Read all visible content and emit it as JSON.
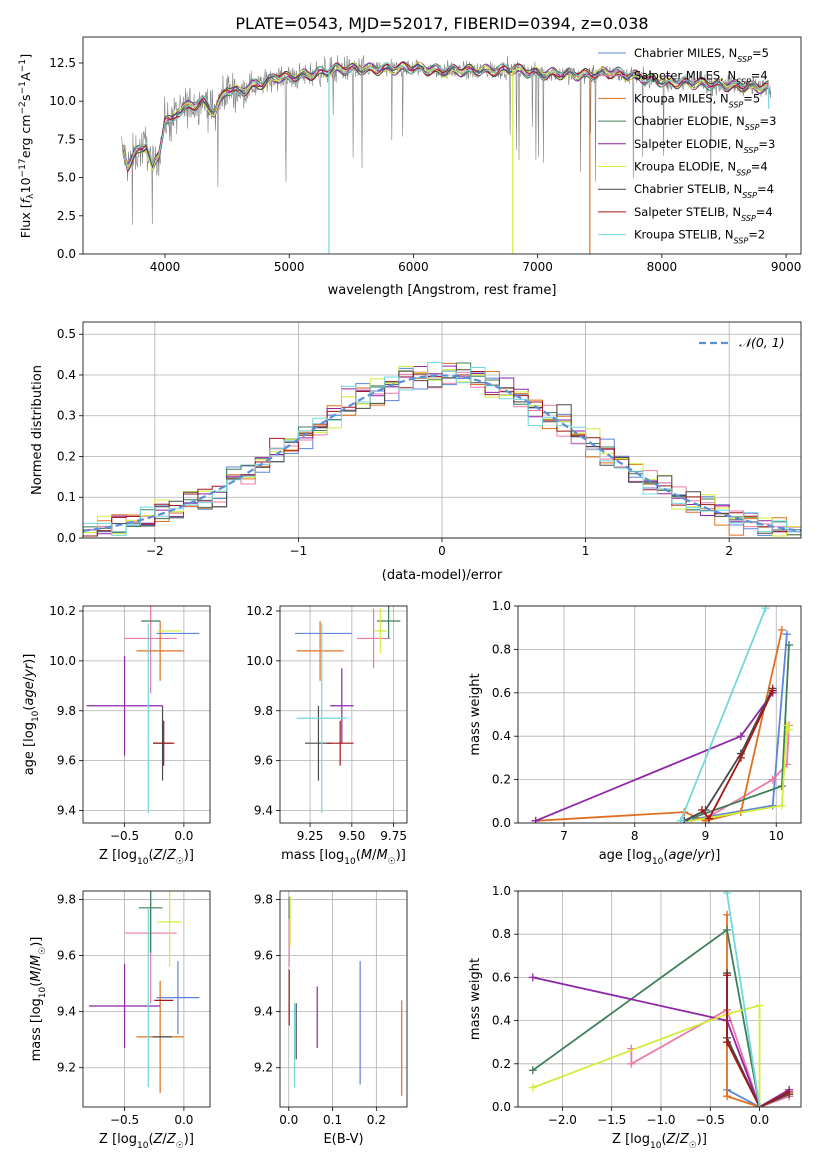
{
  "figure": {
    "title": "PLATE=0543, MJD=52017, FIBERID=0394, z=0.038"
  },
  "colors": {
    "chabrier_miles": "#5b84dc",
    "salpeter_miles": "#ec7aa8",
    "kroupa_miles": "#e07020",
    "chabrier_elodie": "#3f7f5a",
    "salpeter_elodie": "#8e26a8",
    "kroupa_elodie": "#d5eb3a",
    "chabrier_stelib": "#4a4a4a",
    "salpeter_stelib": "#a01818",
    "kroupa_stelib": "#70d8de",
    "data_spectrum": "#808080",
    "normal_curve": "#5b8fd6"
  },
  "chart_data": [
    {
      "id": "spectrum",
      "type": "line",
      "title": "PLATE=0543, MJD=52017, FIBERID=0394, z=0.038",
      "xlabel": "wavelength [Angstrom, rest frame]",
      "ylabel": "Flux [f_λ 10^-17 erg cm^-2 s^-1 A^-1]",
      "xlim": [
        3340,
        9120
      ],
      "ylim": [
        0,
        14.2
      ],
      "xticks": [
        4000,
        5000,
        6000,
        7000,
        8000,
        9000
      ],
      "yticks": [
        0.0,
        2.5,
        5.0,
        7.5,
        10.0,
        12.5
      ],
      "legend_position": "top-right",
      "grid": false,
      "series": [
        {
          "name": "Chabrier MILES, N_SSP=5",
          "key": "chabrier_miles"
        },
        {
          "name": "Salpeter MILES, N_SSP=4",
          "key": "salpeter_miles"
        },
        {
          "name": "Kroupa MILES, N_SSP=5",
          "key": "kroupa_miles"
        },
        {
          "name": "Chabrier ELODIE, N_SSP=3",
          "key": "chabrier_elodie"
        },
        {
          "name": "Salpeter ELODIE, N_SSP=3",
          "key": "salpeter_elodie"
        },
        {
          "name": "Kroupa ELODIE, N_SSP=4",
          "key": "kroupa_elodie"
        },
        {
          "name": "Chabrier STELIB, N_SSP=4",
          "key": "chabrier_stelib"
        },
        {
          "name": "Salpeter STELIB, N_SSP=4",
          "key": "salpeter_stelib"
        },
        {
          "name": "Kroupa STELIB, N_SSP=2",
          "key": "kroupa_stelib"
        }
      ],
      "continuum": {
        "x": [
          3650,
          3700,
          3750,
          3800,
          3850,
          3900,
          3950,
          4000,
          4050,
          4100,
          4200,
          4300,
          4400,
          4500,
          4600,
          4700,
          4800,
          4900,
          5000,
          5200,
          5400,
          5600,
          5800,
          6000,
          6200,
          6400,
          6600,
          6800,
          7000,
          7200,
          7400,
          7600,
          7800,
          8000,
          8200,
          8400,
          8600,
          8800
        ],
        "y": [
          7.0,
          5.8,
          6.5,
          6.8,
          7.2,
          5.5,
          6.5,
          8.8,
          8.6,
          9.3,
          9.7,
          10.0,
          9.3,
          10.8,
          10.6,
          11.0,
          11.2,
          11.6,
          11.5,
          11.8,
          12.1,
          12.1,
          12.1,
          12.2,
          12.0,
          12.0,
          12.0,
          12.1,
          11.8,
          11.8,
          11.7,
          11.9,
          11.6,
          11.3,
          11.2,
          11.1,
          11.0,
          10.9
        ]
      },
      "dropouts": [
        {
          "x": 5320,
          "y_low": 0.0,
          "model": "kroupa_stelib"
        },
        {
          "x": 6800,
          "y_low": 0.0,
          "model": "kroupa_elodie"
        },
        {
          "x": 7420,
          "y_low": 0.0,
          "model": "kroupa_miles"
        },
        {
          "x": 8860,
          "y_low": 9.5,
          "model": "kroupa_stelib"
        }
      ]
    },
    {
      "id": "residuals",
      "type": "histogram",
      "xlabel": "(data-model)/error",
      "ylabel": "Normed distribution",
      "xlim": [
        -2.5,
        2.5
      ],
      "ylim": [
        0,
        0.53
      ],
      "xticks": [
        -2,
        -1,
        0,
        1,
        2
      ],
      "yticks": [
        0.0,
        0.1,
        0.2,
        0.3,
        0.4,
        0.5
      ],
      "grid": true,
      "legend": [
        {
          "name": "𝒩(0, 1)",
          "style": "dashed"
        }
      ],
      "legend_position": "top-right",
      "bin_width": 0.1,
      "normal": {
        "mean": 0,
        "sigma": 1
      }
    },
    {
      "id": "age_vs_Z",
      "type": "errorbar",
      "xlabel": "Z [log10(Z/Z☉)]",
      "ylabel": "age  [log10(age/yr)]",
      "xlim": [
        -0.85,
        0.22
      ],
      "ylim": [
        9.35,
        10.22
      ],
      "xticks": [
        -0.5,
        0.0
      ],
      "yticks": [
        9.4,
        9.6,
        9.8,
        10.0,
        10.2
      ],
      "grid": true,
      "points": [
        {
          "key": "chabrier_miles",
          "x": -0.05,
          "y": 10.11,
          "xerr": 0.18,
          "yerr": 0.0
        },
        {
          "key": "salpeter_miles",
          "x": -0.28,
          "y": 10.09,
          "xerr": 0.22,
          "yerr": 0.22
        },
        {
          "key": "kroupa_miles",
          "x": -0.2,
          "y": 10.04,
          "xerr": 0.2,
          "yerr": 0.12
        },
        {
          "key": "chabrier_elodie",
          "x": -0.28,
          "y": 10.16,
          "xerr": 0.08,
          "yerr": 0.0
        },
        {
          "key": "salpeter_elodie",
          "x": -0.5,
          "y": 9.82,
          "xerr": 0.32,
          "yerr": 0.2
        },
        {
          "key": "kroupa_elodie",
          "x": -0.12,
          "y": 10.12,
          "xerr": 0.1,
          "yerr": 0.0
        },
        {
          "key": "chabrier_stelib",
          "x": -0.18,
          "y": 9.67,
          "xerr": 0.08,
          "yerr": 0.15
        },
        {
          "key": "salpeter_stelib",
          "x": -0.17,
          "y": 9.67,
          "xerr": 0.09,
          "yerr": 0.09
        },
        {
          "key": "kroupa_stelib",
          "x": -0.3,
          "y": 9.77,
          "xerr": 0.0,
          "yerr": 0.38
        }
      ]
    },
    {
      "id": "age_vs_mass",
      "type": "errorbar",
      "xlabel": "mass [log10(M/M☉)]",
      "ylabel": "",
      "xlim": [
        9.07,
        9.83
      ],
      "ylim": [
        9.35,
        10.22
      ],
      "xticks": [
        9.25,
        9.5,
        9.75
      ],
      "yticks": [
        9.4,
        9.6,
        9.8,
        10.0,
        10.2
      ],
      "grid": true,
      "points": [
        {
          "key": "chabrier_miles",
          "x": 9.33,
          "y": 10.11,
          "xerr": 0.17,
          "yerr": 0.0
        },
        {
          "key": "salpeter_miles",
          "x": 9.63,
          "y": 10.09,
          "xerr": 0.1,
          "yerr": 0.12
        },
        {
          "key": "kroupa_miles",
          "x": 9.31,
          "y": 10.04,
          "xerr": 0.14,
          "yerr": 0.12
        },
        {
          "key": "chabrier_elodie",
          "x": 9.72,
          "y": 10.16,
          "xerr": 0.07,
          "yerr": 0.07
        },
        {
          "key": "salpeter_elodie",
          "x": 9.44,
          "y": 9.82,
          "xerr": 0.07,
          "yerr": 0.15
        },
        {
          "key": "kroupa_elodie",
          "x": 9.67,
          "y": 10.12,
          "xerr": 0.04,
          "yerr": 0.09
        },
        {
          "key": "chabrier_stelib",
          "x": 9.3,
          "y": 9.67,
          "xerr": 0.08,
          "yerr": 0.15
        },
        {
          "key": "salpeter_stelib",
          "x": 9.43,
          "y": 9.67,
          "xerr": 0.08,
          "yerr": 0.09
        },
        {
          "key": "kroupa_stelib",
          "x": 9.32,
          "y": 9.77,
          "xerr": 0.15,
          "yerr": 0.38
        }
      ]
    },
    {
      "id": "weight_vs_age",
      "type": "line",
      "xlabel": "age  [log10(age/yr)]",
      "ylabel": "mass weight",
      "xlim": [
        6.35,
        10.35
      ],
      "ylim": [
        0,
        1
      ],
      "xticks": [
        7,
        8,
        9,
        10
      ],
      "yticks": [
        0.0,
        0.2,
        0.4,
        0.6,
        0.8,
        1.0
      ],
      "grid": true,
      "series": [
        {
          "key": "chabrier_miles",
          "x": [
            8.7,
            9.95,
            10.15
          ],
          "y": [
            0.01,
            0.08,
            0.87
          ]
        },
        {
          "key": "salpeter_miles",
          "x": [
            9.0,
            9.95,
            10.15,
            10.18
          ],
          "y": [
            0.02,
            0.2,
            0.27,
            0.45
          ]
        },
        {
          "key": "kroupa_miles",
          "x": [
            6.6,
            8.7,
            9.0,
            9.5,
            10.08
          ],
          "y": [
            0.01,
            0.05,
            0.01,
            0.05,
            0.89
          ]
        },
        {
          "key": "chabrier_elodie",
          "x": [
            8.7,
            10.08,
            10.18
          ],
          "y": [
            0.01,
            0.17,
            0.82
          ]
        },
        {
          "key": "salpeter_elodie",
          "x": [
            6.6,
            9.5,
            9.95
          ],
          "y": [
            0.01,
            0.4,
            0.6
          ]
        },
        {
          "key": "kroupa_elodie",
          "x": [
            8.8,
            10.08,
            10.15,
            10.18
          ],
          "y": [
            0.01,
            0.08,
            0.45,
            0.43
          ]
        },
        {
          "key": "chabrier_stelib",
          "x": [
            8.7,
            9.0,
            9.5,
            9.95
          ],
          "y": [
            0.01,
            0.06,
            0.32,
            0.62
          ]
        },
        {
          "key": "salpeter_stelib",
          "x": [
            8.95,
            9.05,
            9.5,
            9.95
          ],
          "y": [
            0.06,
            0.02,
            0.3,
            0.61
          ]
        },
        {
          "key": "kroupa_stelib",
          "x": [
            8.65,
            9.85
          ],
          "y": [
            0.01,
            0.99
          ]
        }
      ]
    },
    {
      "id": "mass_vs_Z",
      "type": "errorbar",
      "xlabel": "Z [log10(Z/Z☉)]",
      "ylabel": "mass [log10(M/M☉)]",
      "xlim": [
        -0.85,
        0.22
      ],
      "ylim": [
        9.06,
        9.83
      ],
      "xticks": [
        -0.5,
        0.0
      ],
      "yticks": [
        9.2,
        9.4,
        9.6,
        9.8
      ],
      "grid": true,
      "points": [
        {
          "key": "chabrier_miles",
          "x": -0.05,
          "y": 9.45,
          "xerr": 0.18,
          "yerr": 0.13
        },
        {
          "key": "salpeter_miles",
          "x": -0.28,
          "y": 9.68,
          "xerr": 0.22,
          "yerr": 0.25
        },
        {
          "key": "kroupa_miles",
          "x": -0.2,
          "y": 9.31,
          "xerr": 0.2,
          "yerr": 0.2
        },
        {
          "key": "chabrier_elodie",
          "x": -0.28,
          "y": 9.77,
          "xerr": 0.1,
          "yerr": 0.16
        },
        {
          "key": "salpeter_elodie",
          "x": -0.5,
          "y": 9.42,
          "xerr": 0.3,
          "yerr": 0.15
        },
        {
          "key": "kroupa_elodie",
          "x": -0.12,
          "y": 9.72,
          "xerr": 0.1,
          "yerr": 0.16
        },
        {
          "key": "chabrier_stelib",
          "x": -0.18,
          "y": 9.31,
          "xerr": 0.08,
          "yerr": 0.0
        },
        {
          "key": "salpeter_stelib",
          "x": -0.17,
          "y": 9.44,
          "xerr": 0.08,
          "yerr": 0.0
        },
        {
          "key": "kroupa_stelib",
          "x": -0.3,
          "y": 9.45,
          "xerr": 0.0,
          "yerr": 0.32
        }
      ]
    },
    {
      "id": "mass_vs_EBV",
      "type": "errorbar",
      "xlabel": "E(B-V)",
      "ylabel": "",
      "xlim": [
        -0.02,
        0.27
      ],
      "ylim": [
        9.06,
        9.83
      ],
      "xticks": [
        0.0,
        0.1,
        0.2
      ],
      "yticks": [
        9.2,
        9.4,
        9.6,
        9.8
      ],
      "grid": true,
      "points": [
        {
          "key": "chabrier_miles",
          "x": 0.163,
          "y": 9.36,
          "xerr": 0.0,
          "yerr": 0.22
        },
        {
          "key": "salpeter_miles",
          "x": 0.001,
          "y": 9.68,
          "xerr": 0.0,
          "yerr": 0.12
        },
        {
          "key": "kroupa_miles",
          "x": 0.258,
          "y": 9.27,
          "xerr": 0.0,
          "yerr": 0.17
        },
        {
          "key": "chabrier_elodie",
          "x": 0.001,
          "y": 9.77,
          "xerr": 0.0,
          "yerr": 0.04
        },
        {
          "key": "salpeter_elodie",
          "x": 0.065,
          "y": 9.38,
          "xerr": 0.0,
          "yerr": 0.11
        },
        {
          "key": "kroupa_elodie",
          "x": 0.003,
          "y": 9.72,
          "xerr": 0.0,
          "yerr": 0.09
        },
        {
          "key": "chabrier_stelib",
          "x": 0.017,
          "y": 9.33,
          "xerr": 0.0,
          "yerr": 0.1
        },
        {
          "key": "salpeter_stelib",
          "x": 0.001,
          "y": 9.45,
          "xerr": 0.0,
          "yerr": 0.1
        },
        {
          "key": "kroupa_stelib",
          "x": 0.013,
          "y": 9.28,
          "xerr": 0.0,
          "yerr": 0.15
        }
      ]
    },
    {
      "id": "weight_vs_Z",
      "type": "line",
      "xlabel": "Z [log10(Z/Z☉)]",
      "ylabel": "mass weight",
      "xlim": [
        -2.45,
        0.42
      ],
      "ylim": [
        0,
        1
      ],
      "xticks": [
        -2.0,
        -1.5,
        -1.0,
        -0.5,
        0.0
      ],
      "yticks": [
        0.0,
        0.2,
        0.4,
        0.6,
        0.8,
        1.0
      ],
      "grid": true,
      "series": [
        {
          "key": "chabrier_miles",
          "x": [
            -0.33,
            0.0,
            0.3
          ],
          "y": [
            0.08,
            0.0,
            0.05
          ]
        },
        {
          "key": "salpeter_miles",
          "x": [
            -1.3,
            -1.3,
            -0.33,
            0.0,
            0.3
          ],
          "y": [
            0.27,
            0.2,
            0.45,
            0.0,
            0.05
          ]
        },
        {
          "key": "kroupa_miles",
          "x": [
            -0.33,
            -0.33,
            0.0,
            0.3
          ],
          "y": [
            0.89,
            0.05,
            0.0,
            0.06
          ]
        },
        {
          "key": "chabrier_elodie",
          "x": [
            -2.3,
            -0.33,
            0.0
          ],
          "y": [
            0.17,
            0.82,
            0.0
          ]
        },
        {
          "key": "salpeter_elodie",
          "x": [
            -2.3,
            -0.33,
            0.0,
            0.3
          ],
          "y": [
            0.6,
            0.4,
            0.0,
            0.08
          ]
        },
        {
          "key": "kroupa_elodie",
          "x": [
            -2.3,
            -0.33,
            0.0,
            0.0
          ],
          "y": [
            0.09,
            0.43,
            0.47,
            0.0
          ]
        },
        {
          "key": "chabrier_stelib",
          "x": [
            -0.33,
            -0.33,
            0.0,
            0.3
          ],
          "y": [
            0.62,
            0.32,
            0.0,
            0.06
          ]
        },
        {
          "key": "salpeter_stelib",
          "x": [
            -0.33,
            -0.33,
            0.0,
            0.3
          ],
          "y": [
            0.61,
            0.3,
            0.0,
            0.07
          ]
        },
        {
          "key": "kroupa_stelib",
          "x": [
            -0.33,
            0.0
          ],
          "y": [
            0.99,
            0.0
          ]
        }
      ]
    }
  ]
}
